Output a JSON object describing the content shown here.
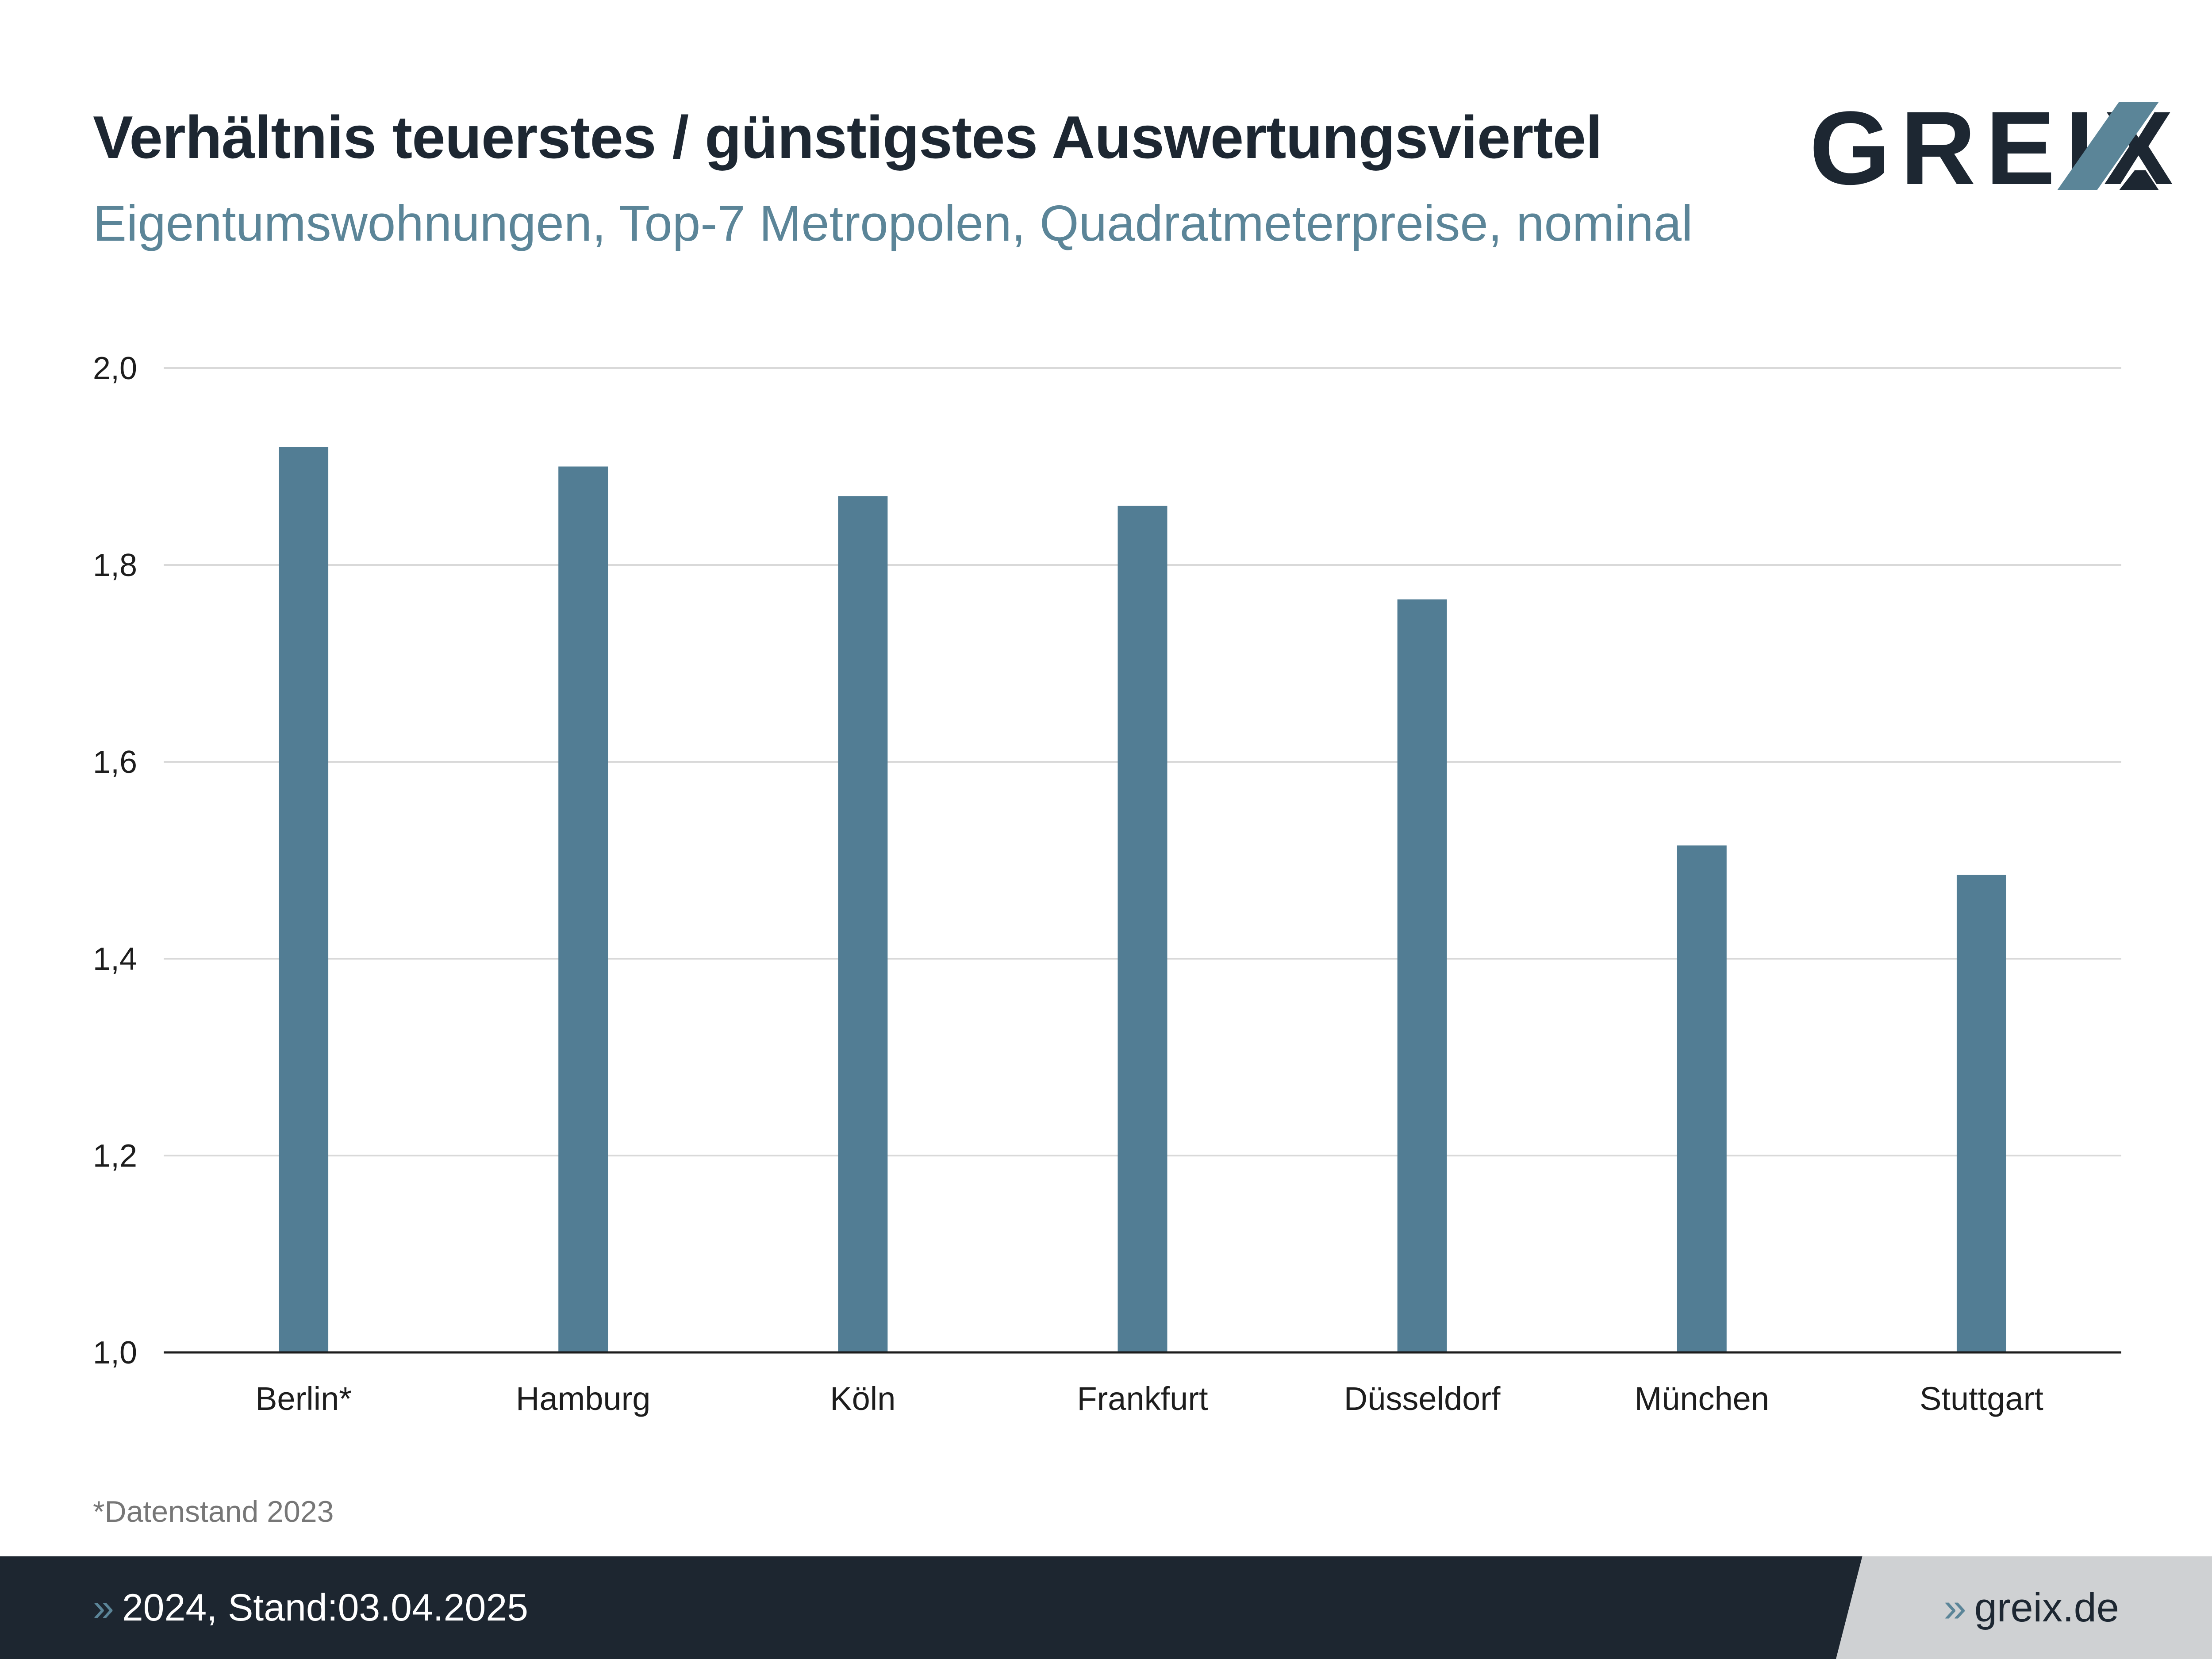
{
  "header": {
    "title": "Verhältnis teuerstes / günstigstes Auswertungsviertel",
    "subtitle": "Eigentumswohnungen, Top-7 Metropolen, Quadratmeterpreise, nominal"
  },
  "logo": {
    "text": "GREIX",
    "mark_color": "#5b8598"
  },
  "footnote": {
    "marker": "*",
    "text": "Datenstand 2023"
  },
  "footer": {
    "chevron": "»",
    "left_text": "2024, Stand:03.04.2025",
    "right_text": "greix.de"
  },
  "colors": {
    "bar": "#527d94",
    "grid": "#d9d9d9",
    "axis": "#1d1d1d"
  },
  "chart_data": {
    "type": "bar",
    "categories": [
      "Berlin*",
      "Hamburg",
      "Köln",
      "Frankfurt",
      "Düsseldorf",
      "München",
      "Stuttgart"
    ],
    "values": [
      1.92,
      1.9,
      1.87,
      1.86,
      1.765,
      1.515,
      1.485
    ],
    "ylim": [
      1.0,
      2.0
    ],
    "yticks": [
      1.0,
      1.2,
      1.4,
      1.6,
      1.8,
      2.0
    ],
    "ytick_labels": [
      "1,0",
      "1,2",
      "1,4",
      "1,6",
      "1,8",
      "2,0"
    ],
    "grid": true,
    "legend": "none"
  }
}
